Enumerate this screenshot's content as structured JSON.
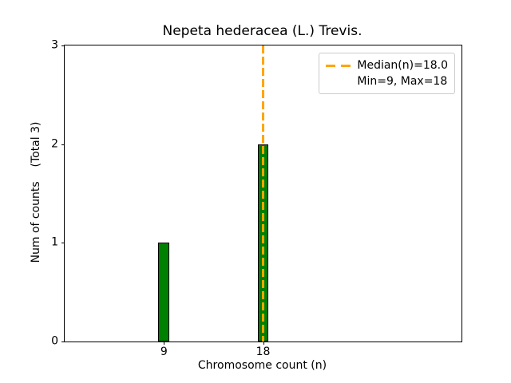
{
  "chart_data": {
    "type": "bar",
    "title": "Nepeta hederacea (L.) Trevis.",
    "xlabel": "Chromosome count (n)",
    "ylabel": "Num of counts    (Total 3)",
    "total_counts": 3,
    "bars": [
      {
        "x": 9,
        "count": 1
      },
      {
        "x": 18,
        "count": 2
      }
    ],
    "bar_width": 1,
    "xlim": [
      0,
      36
    ],
    "ylim": [
      0,
      3
    ],
    "xticks": [
      9,
      18
    ],
    "yticks": [
      0,
      1,
      2,
      3
    ],
    "grid": false,
    "median": {
      "x": 18,
      "value": 18.0
    },
    "min": 9,
    "max": 18,
    "legend": {
      "position": "upper-right",
      "entries": [
        {
          "label": "Median(n)=18.0",
          "marker": "orange-dashed-line"
        },
        {
          "label": "Min=9, Max=18",
          "marker": "none"
        }
      ]
    },
    "colors": {
      "bar_fill": "#008000",
      "bar_edge": "#000000",
      "median_line": "#FFA500",
      "axes": "#000000",
      "text": "#000000",
      "legend_border": "#cccccc",
      "background": "#ffffff"
    }
  }
}
